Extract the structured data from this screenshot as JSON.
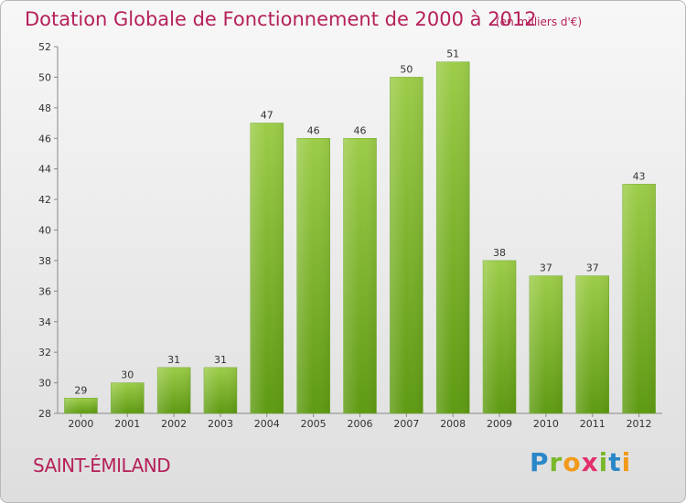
{
  "header": {
    "title": "Dotation Globale de Fonctionnement de 2000 à 2012",
    "unit": "(en milliers d'€)"
  },
  "footer": {
    "commune": "SAINT-ÉMILAND",
    "logo": "Proxiti"
  },
  "colors": {
    "title": "#b5205a",
    "bar_light": "#9ccc48",
    "bar_dark": "#5e9a12"
  },
  "chart_data": {
    "type": "bar",
    "title": "Dotation Globale de Fonctionnement de 2000 à 2012",
    "subtitle": "(en milliers d'€)",
    "xlabel": "",
    "ylabel": "",
    "categories": [
      "2000",
      "2001",
      "2002",
      "2003",
      "2004",
      "2005",
      "2006",
      "2007",
      "2008",
      "2009",
      "2010",
      "2011",
      "2012"
    ],
    "values": [
      29,
      30,
      31,
      31,
      47,
      46,
      46,
      50,
      51,
      38,
      37,
      37,
      43
    ],
    "ylim": [
      28,
      52
    ],
    "yticks": [
      28,
      30,
      32,
      34,
      36,
      38,
      40,
      42,
      44,
      46,
      48,
      50,
      52
    ],
    "grid": false,
    "data_labels": true
  }
}
